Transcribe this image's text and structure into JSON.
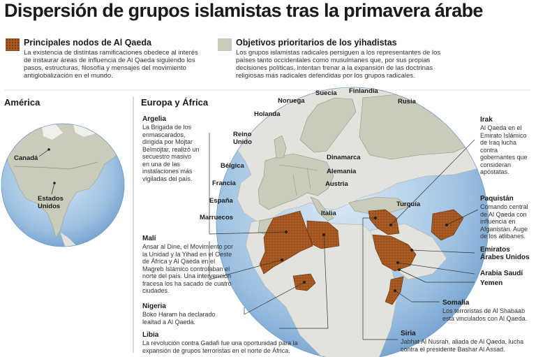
{
  "title": "Dispersión de grupos islamistas tras la primavera árabe",
  "legend": {
    "qaeda": {
      "heading": "Principales nodos de Al Qaeda",
      "text": "La existencia de distintas ramificaciones obedece al interés de instaurar áreas de influencia de Al Qaeda siguiendo los pasos, estructuras, filosofía y mensajes del movimiento antiglobalización en el mundo.",
      "color": "#a85a22"
    },
    "objetivos": {
      "heading": "Objetivos prioritarios de los yihadistas",
      "text": "Los grupos islamistas radicales persiguen a los representantes de los países tanto occidentales como musulmanes que, por sus propias decisiones políticas, intentan frenar a la expansión de las doctrinas religiosas más radicales defendidas por los grupos radicales.",
      "color": "#c9ccba"
    }
  },
  "sections": {
    "america": "América",
    "europa_africa": "Europa y África"
  },
  "countries": {
    "canada": "Canadá",
    "eeuu": "Estados Unidos",
    "noruega": "Noruega",
    "suecia": "Suecia",
    "finlandia": "Finlandia",
    "rusia": "Rusia",
    "holanda": "Holanda",
    "reino_unido": "Reino Unido",
    "dinamarca": "Dinamarca",
    "belgica": "Bélgica",
    "alemania": "Alemania",
    "francia": "Francia",
    "austria": "Austria",
    "espana": "España",
    "italia": "Italia",
    "marruecos": "Marruecos",
    "turquia": "Turquía"
  },
  "annotations": {
    "argelia": {
      "heading": "Argelia",
      "text": "La Brigada de los enmascarados, dirigida por Mojtar Belmojtar, realizó un secuestro masivo en una de las instalaciones más vigiladas del país."
    },
    "mali": {
      "heading": "Malí",
      "text": "Ansar al Dine, el Movimiento por la Unidad y la Yihad en el Oeste de África y Al Qaeda en el Magreb Islámico controlaban el norte del país. Una intervención fracesa los ha sacado de cuatro ciudades."
    },
    "nigeria": {
      "heading": "Nigeria",
      "text": "Boko Haram ha declarado lealtad a Al Qaeda."
    },
    "libia": {
      "heading": "Libia",
      "text": "La revolución contra Gadafi fue una oportunidad para la expansión de grupos terroristas en el norte de África."
    },
    "irak": {
      "heading": "Irak",
      "text": "Al Qaeda en el Emirato Islámico de Iraq lucha contra gobernantes que consideran apóstatas."
    },
    "paquistan": {
      "heading": "Paquistán",
      "text": "Comando central de Al Qaeda con influencia en Afganistán. Auge de los atlibanes."
    },
    "emiratos": {
      "heading": "Emiratos Árabes Unidos"
    },
    "arabia": {
      "heading": "Arabia Saudí"
    },
    "yemen": {
      "heading": "Yemen"
    },
    "somalia": {
      "heading": "Somalia",
      "text": "Los terroristas de Al Shabaab está vinculados con Al Qaeda."
    },
    "siria": {
      "heading": "Siria",
      "text": "Jabhat Al Nusrah, aliada de Al Qaeda, lucha contra el presidente Bashar Al Assad."
    }
  },
  "colors": {
    "ocean": "#8fb8dd",
    "ocean_light": "#d6e6f4",
    "land": "#e3e3de",
    "target": "#c9ccba",
    "qaeda": "#a85a22",
    "lines": "#555555"
  }
}
